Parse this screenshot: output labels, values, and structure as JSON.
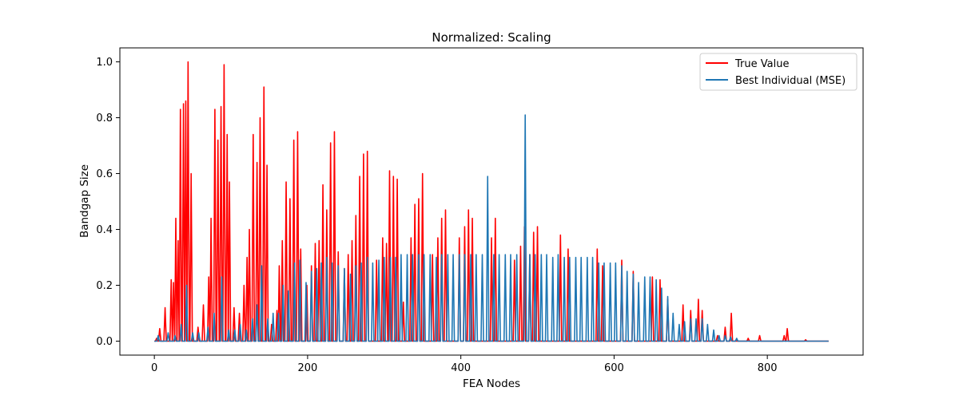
{
  "chart_data": {
    "type": "line",
    "title": "Normalized: Scaling",
    "xlabel": "FEA Nodes",
    "ylabel": "Bandgap Size",
    "xlim": [
      -45,
      925
    ],
    "ylim": [
      -0.05,
      1.05
    ],
    "xticks": [
      0,
      200,
      400,
      600,
      800
    ],
    "yticks": [
      0.0,
      0.2,
      0.4,
      0.6,
      0.8,
      1.0
    ],
    "xtick_labels": [
      "0",
      "200",
      "400",
      "600",
      "800"
    ],
    "ytick_labels": [
      "0.0",
      "0.2",
      "0.4",
      "0.6",
      "0.8",
      "1.0"
    ],
    "grid": false,
    "legend_position": "top-right",
    "series": [
      {
        "name": "True Value",
        "color": "#ff0000",
        "peaks": [
          [
            3,
            0.01
          ],
          [
            7,
            0.045
          ],
          [
            14,
            0.12
          ],
          [
            22,
            0.22
          ],
          [
            25,
            0.21
          ],
          [
            28,
            0.44
          ],
          [
            31,
            0.36
          ],
          [
            34,
            0.83
          ],
          [
            38,
            0.85
          ],
          [
            41,
            0.86
          ],
          [
            44,
            1.0
          ],
          [
            48,
            0.6
          ],
          [
            57,
            0.05
          ],
          [
            64,
            0.13
          ],
          [
            71,
            0.23
          ],
          [
            74,
            0.44
          ],
          [
            79,
            0.83
          ],
          [
            83,
            0.72
          ],
          [
            87,
            0.84
          ],
          [
            91,
            0.99
          ],
          [
            95,
            0.74
          ],
          [
            98,
            0.57
          ],
          [
            104,
            0.12
          ],
          [
            111,
            0.1
          ],
          [
            117,
            0.2
          ],
          [
            121,
            0.3
          ],
          [
            124,
            0.4
          ],
          [
            129,
            0.74
          ],
          [
            134,
            0.64
          ],
          [
            138,
            0.8
          ],
          [
            143,
            0.91
          ],
          [
            147,
            0.63
          ],
          [
            153,
            0.06
          ],
          [
            160,
            0.11
          ],
          [
            163,
            0.27
          ],
          [
            167,
            0.36
          ],
          [
            172,
            0.57
          ],
          [
            177,
            0.51
          ],
          [
            182,
            0.72
          ],
          [
            187,
            0.75
          ],
          [
            191,
            0.33
          ],
          [
            199,
            0.2
          ],
          [
            205,
            0.27
          ],
          [
            210,
            0.35
          ],
          [
            215,
            0.36
          ],
          [
            220,
            0.56
          ],
          [
            225,
            0.47
          ],
          [
            230,
            0.71
          ],
          [
            235,
            0.75
          ],
          [
            240,
            0.32
          ],
          [
            248,
            0.26
          ],
          [
            253,
            0.31
          ],
          [
            258,
            0.36
          ],
          [
            263,
            0.45
          ],
          [
            268,
            0.59
          ],
          [
            273,
            0.67
          ],
          [
            278,
            0.68
          ],
          [
            290,
            0.29
          ],
          [
            298,
            0.37
          ],
          [
            303,
            0.35
          ],
          [
            307,
            0.61
          ],
          [
            312,
            0.59
          ],
          [
            317,
            0.58
          ],
          [
            325,
            0.14
          ],
          [
            335,
            0.37
          ],
          [
            340,
            0.49
          ],
          [
            345,
            0.51
          ],
          [
            350,
            0.6
          ],
          [
            363,
            0.31
          ],
          [
            370,
            0.37
          ],
          [
            375,
            0.44
          ],
          [
            380,
            0.47
          ],
          [
            398,
            0.37
          ],
          [
            405,
            0.41
          ],
          [
            410,
            0.47
          ],
          [
            415,
            0.44
          ],
          [
            440,
            0.37
          ],
          [
            445,
            0.44
          ],
          [
            470,
            0.29
          ],
          [
            478,
            0.34
          ],
          [
            483,
            0.41
          ],
          [
            490,
            0.31
          ],
          [
            495,
            0.39
          ],
          [
            500,
            0.41
          ],
          [
            530,
            0.38
          ],
          [
            540,
            0.33
          ],
          [
            578,
            0.33
          ],
          [
            585,
            0.27
          ],
          [
            610,
            0.29
          ],
          [
            625,
            0.25
          ],
          [
            650,
            0.23
          ],
          [
            660,
            0.22
          ],
          [
            670,
            0.15
          ],
          [
            690,
            0.13
          ],
          [
            700,
            0.11
          ],
          [
            710,
            0.15
          ],
          [
            715,
            0.11
          ],
          [
            735,
            0.02
          ],
          [
            745,
            0.05
          ],
          [
            753,
            0.1
          ],
          [
            775,
            0.01
          ],
          [
            790,
            0.02
          ],
          [
            822,
            0.02
          ],
          [
            826,
            0.045
          ],
          [
            850,
            0.005
          ]
        ]
      },
      {
        "name": "Best Individual (MSE)",
        "color": "#1f77b4",
        "peaks": [
          [
            5,
            0.02
          ],
          [
            18,
            0.03
          ],
          [
            27,
            0.02
          ],
          [
            35,
            0.06
          ],
          [
            42,
            0.2
          ],
          [
            50,
            0.03
          ],
          [
            58,
            0.03
          ],
          [
            70,
            0.05
          ],
          [
            78,
            0.1
          ],
          [
            88,
            0.23
          ],
          [
            97,
            0.04
          ],
          [
            105,
            0.04
          ],
          [
            112,
            0.06
          ],
          [
            120,
            0.04
          ],
          [
            128,
            0.08
          ],
          [
            134,
            0.13
          ],
          [
            140,
            0.27
          ],
          [
            148,
            0.08
          ],
          [
            155,
            0.1
          ],
          [
            162,
            0.1
          ],
          [
            168,
            0.2
          ],
          [
            175,
            0.18
          ],
          [
            183,
            0.28
          ],
          [
            190,
            0.29
          ],
          [
            198,
            0.21
          ],
          [
            205,
            0.25
          ],
          [
            212,
            0.26
          ],
          [
            218,
            0.28
          ],
          [
            225,
            0.3
          ],
          [
            232,
            0.28
          ],
          [
            240,
            0.27
          ],
          [
            248,
            0.26
          ],
          [
            256,
            0.24
          ],
          [
            263,
            0.27
          ],
          [
            270,
            0.28
          ],
          [
            278,
            0.3
          ],
          [
            285,
            0.28
          ],
          [
            293,
            0.29
          ],
          [
            300,
            0.3
          ],
          [
            308,
            0.3
          ],
          [
            315,
            0.3
          ],
          [
            322,
            0.31
          ],
          [
            330,
            0.31
          ],
          [
            337,
            0.31
          ],
          [
            345,
            0.31
          ],
          [
            352,
            0.31
          ],
          [
            360,
            0.31
          ],
          [
            368,
            0.3
          ],
          [
            375,
            0.31
          ],
          [
            383,
            0.31
          ],
          [
            390,
            0.31
          ],
          [
            398,
            0.31
          ],
          [
            405,
            0.31
          ],
          [
            413,
            0.31
          ],
          [
            420,
            0.31
          ],
          [
            428,
            0.31
          ],
          [
            435,
            0.59
          ],
          [
            443,
            0.31
          ],
          [
            450,
            0.31
          ],
          [
            458,
            0.31
          ],
          [
            465,
            0.31
          ],
          [
            473,
            0.31
          ],
          [
            484,
            0.81
          ],
          [
            490,
            0.31
          ],
          [
            497,
            0.31
          ],
          [
            505,
            0.31
          ],
          [
            512,
            0.31
          ],
          [
            520,
            0.3
          ],
          [
            527,
            0.31
          ],
          [
            535,
            0.3
          ],
          [
            542,
            0.3
          ],
          [
            550,
            0.3
          ],
          [
            557,
            0.3
          ],
          [
            565,
            0.3
          ],
          [
            572,
            0.3
          ],
          [
            580,
            0.28
          ],
          [
            587,
            0.28
          ],
          [
            595,
            0.28
          ],
          [
            602,
            0.28
          ],
          [
            610,
            0.27
          ],
          [
            617,
            0.25
          ],
          [
            625,
            0.24
          ],
          [
            632,
            0.21
          ],
          [
            640,
            0.23
          ],
          [
            647,
            0.23
          ],
          [
            655,
            0.22
          ],
          [
            662,
            0.19
          ],
          [
            670,
            0.16
          ],
          [
            677,
            0.1
          ],
          [
            685,
            0.06
          ],
          [
            692,
            0.07
          ],
          [
            700,
            0.08
          ],
          [
            707,
            0.08
          ],
          [
            715,
            0.08
          ],
          [
            722,
            0.06
          ],
          [
            730,
            0.04
          ],
          [
            737,
            0.02
          ],
          [
            745,
            0.02
          ],
          [
            752,
            0.015
          ],
          [
            760,
            0.01
          ]
        ]
      }
    ]
  }
}
